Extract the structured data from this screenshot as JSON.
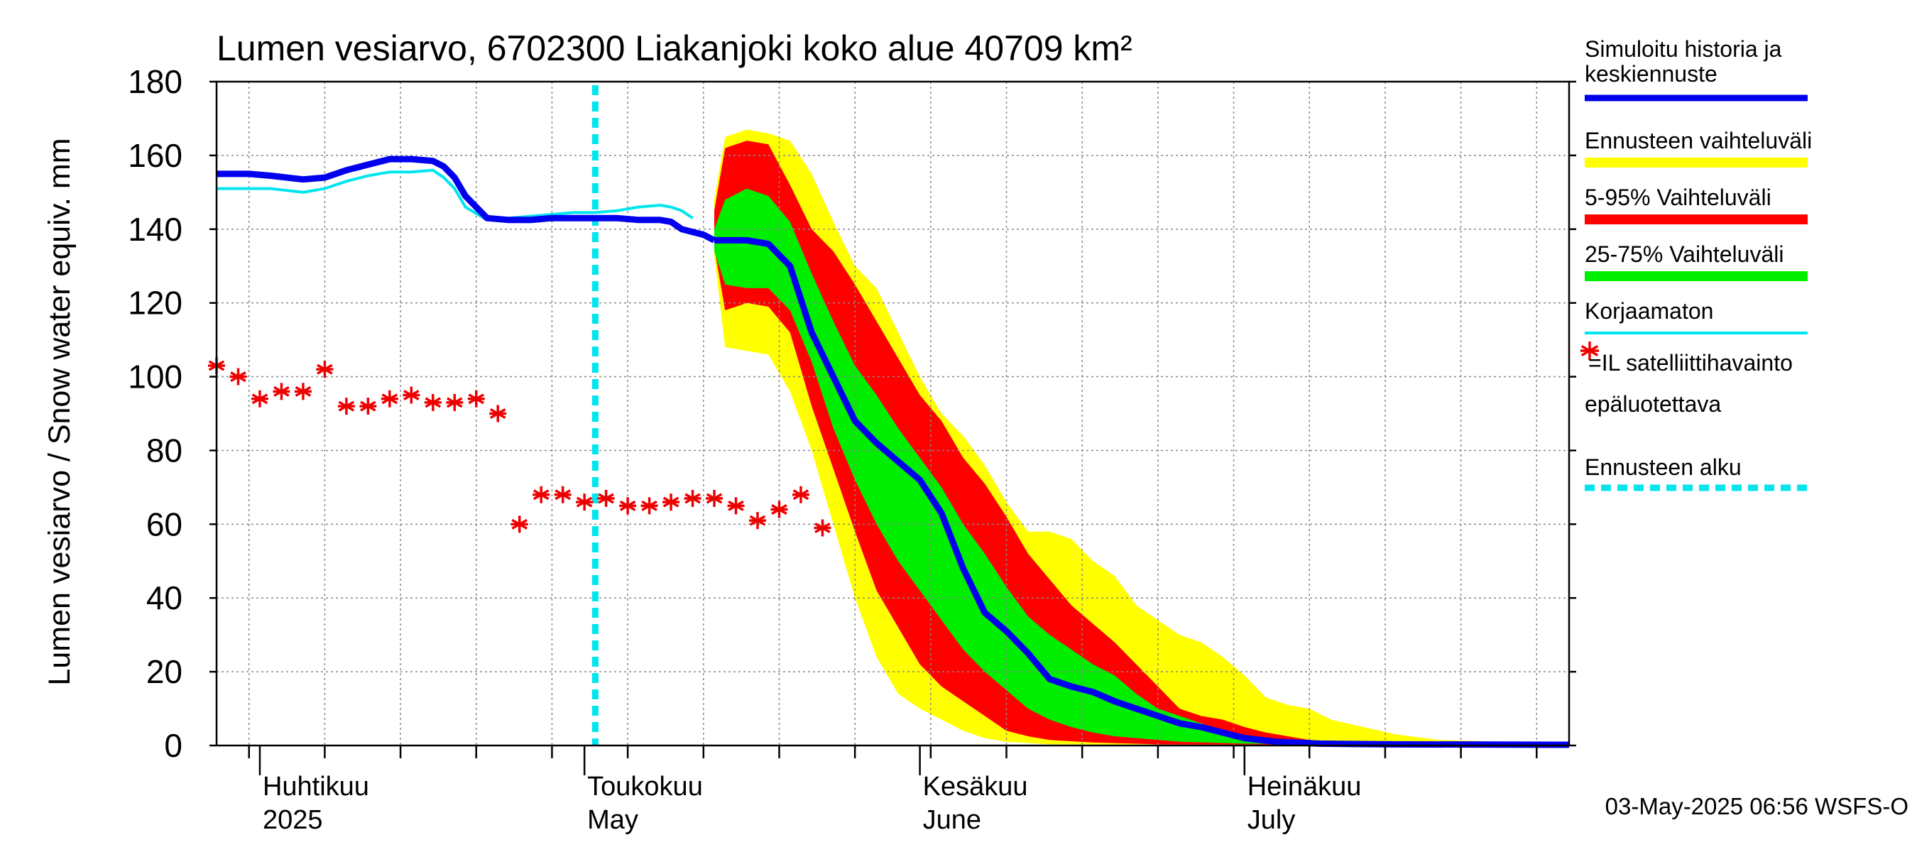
{
  "chart_data": {
    "type": "area",
    "title": "Lumen vesiarvo, 6702300 Liakanjoki koko alue 40709 km²",
    "ylabel": "Lumen vesiarvo / Snow water equiv.    mm",
    "ylim": [
      0,
      180
    ],
    "yticks": [
      "0",
      "20",
      "40",
      "60",
      "80",
      "100",
      "120",
      "140",
      "160",
      "180"
    ],
    "xlim": [
      "2025-03-28",
      "2025-07-31"
    ],
    "x_week_lines": [
      "2025-03-31",
      "2025-04-07",
      "2025-04-14",
      "2025-04-21",
      "2025-04-28",
      "2025-05-05",
      "2025-05-12",
      "2025-05-19",
      "2025-05-26",
      "2025-06-02",
      "2025-06-09",
      "2025-06-16",
      "2025-06-23",
      "2025-06-30",
      "2025-07-07",
      "2025-07-14",
      "2025-07-21",
      "2025-07-28"
    ],
    "x_month_ticks": [
      "2025-04-01",
      "2025-05-01",
      "2025-06-01",
      "2025-07-01"
    ],
    "month_labels": [
      {
        "x": "2025-04-01",
        "fi": "Huhtikuu",
        "en": "2025"
      },
      {
        "x": "2025-05-01",
        "fi": "Toukokuu",
        "en": "May"
      },
      {
        "x": "2025-06-01",
        "fi": "Kesäkuu",
        "en": "June"
      },
      {
        "x": "2025-07-01",
        "fi": "Heinäkuu",
        "en": "July"
      }
    ],
    "forecast_start": "2025-05-02",
    "grid": true,
    "legend_position": "right",
    "footer": "03-May-2025 06:56 WSFS-O",
    "colors": {
      "simulated": "#0000ee",
      "range_full": "#ffff00",
      "range_5_95": "#ff0000",
      "range_25_75": "#00ee00",
      "uncorrected": "#00e5ee",
      "satellite": "#ee0000",
      "forecast_start": "#00e5ee"
    },
    "legend": [
      {
        "key": "simulated",
        "label": "Simuloitu historia ja keskiennuste",
        "label_lines": [
          "Simuloitu historia ja",
          "keskiennuste"
        ],
        "style": "line"
      },
      {
        "key": "range_full",
        "label": "Ennusteen vaihteluväli",
        "style": "band"
      },
      {
        "key": "range_5_95",
        "label": "5-95% Vaihteluväli",
        "style": "band"
      },
      {
        "key": "range_25_75",
        "label": "25-75% Vaihteluväli",
        "style": "band"
      },
      {
        "key": "uncorrected",
        "label": "Korjaamaton",
        "style": "thin"
      },
      {
        "key": "satellite",
        "label": "=IL satelliittihavainto",
        "label2": "epäluotettava",
        "style": "star"
      },
      {
        "key": "forecast_start",
        "label": "Ennusteen alku",
        "style": "dashed"
      }
    ],
    "series": {
      "simulated_history": [
        [
          "2025-03-28",
          155
        ],
        [
          "2025-03-31",
          155
        ],
        [
          "2025-04-02",
          154.5
        ],
        [
          "2025-04-05",
          153.5
        ],
        [
          "2025-04-07",
          154
        ],
        [
          "2025-04-09",
          156
        ],
        [
          "2025-04-11",
          157.5
        ],
        [
          "2025-04-13",
          159
        ],
        [
          "2025-04-15",
          159
        ],
        [
          "2025-04-17",
          158.5
        ],
        [
          "2025-04-18",
          157
        ],
        [
          "2025-04-19",
          154
        ],
        [
          "2025-04-20",
          149
        ],
        [
          "2025-04-22",
          143
        ],
        [
          "2025-04-24",
          142.5
        ],
        [
          "2025-04-26",
          142.5
        ],
        [
          "2025-04-28",
          143
        ],
        [
          "2025-04-30",
          143
        ],
        [
          "2025-05-02",
          143
        ],
        [
          "2025-05-04",
          143
        ],
        [
          "2025-05-06",
          142.5
        ],
        [
          "2025-05-08",
          142.5
        ],
        [
          "2025-05-09",
          142
        ],
        [
          "2025-05-10",
          140
        ],
        [
          "2025-05-12",
          138.5
        ],
        [
          "2025-05-13",
          137
        ]
      ],
      "uncorrected": [
        [
          "2025-03-28",
          151
        ],
        [
          "2025-03-31",
          151
        ],
        [
          "2025-04-02",
          151
        ],
        [
          "2025-04-05",
          150
        ],
        [
          "2025-04-07",
          151
        ],
        [
          "2025-04-09",
          153
        ],
        [
          "2025-04-11",
          154.5
        ],
        [
          "2025-04-13",
          155.5
        ],
        [
          "2025-04-15",
          155.5
        ],
        [
          "2025-04-17",
          156
        ],
        [
          "2025-04-18",
          154
        ],
        [
          "2025-04-19",
          151
        ],
        [
          "2025-04-20",
          146
        ],
        [
          "2025-04-22",
          142.5
        ],
        [
          "2025-04-24",
          143
        ],
        [
          "2025-04-26",
          143.5
        ],
        [
          "2025-04-28",
          144
        ],
        [
          "2025-04-30",
          144.5
        ],
        [
          "2025-05-02",
          144.5
        ],
        [
          "2025-05-04",
          145
        ],
        [
          "2025-05-06",
          146
        ],
        [
          "2025-05-08",
          146.5
        ],
        [
          "2025-05-09",
          146
        ],
        [
          "2025-05-10",
          145
        ],
        [
          "2025-05-11",
          143
        ]
      ],
      "forecast_median": [
        [
          "2025-05-13",
          137
        ],
        [
          "2025-05-16",
          137
        ],
        [
          "2025-05-18",
          136
        ],
        [
          "2025-05-20",
          130
        ],
        [
          "2025-05-22",
          112
        ],
        [
          "2025-05-24",
          100
        ],
        [
          "2025-05-26",
          88
        ],
        [
          "2025-05-28",
          82
        ],
        [
          "2025-06-01",
          72
        ],
        [
          "2025-06-03",
          63
        ],
        [
          "2025-06-05",
          48
        ],
        [
          "2025-06-07",
          36
        ],
        [
          "2025-06-09",
          31
        ],
        [
          "2025-06-11",
          25
        ],
        [
          "2025-06-13",
          18
        ],
        [
          "2025-06-15",
          16
        ],
        [
          "2025-06-17",
          14.5
        ],
        [
          "2025-06-19",
          12
        ],
        [
          "2025-06-21",
          10
        ],
        [
          "2025-06-23",
          8
        ],
        [
          "2025-06-25",
          6
        ],
        [
          "2025-06-27",
          5
        ],
        [
          "2025-06-29",
          3.5
        ],
        [
          "2025-07-01",
          2
        ],
        [
          "2025-07-04",
          1
        ],
        [
          "2025-07-08",
          0.5
        ],
        [
          "2025-07-15",
          0.3
        ],
        [
          "2025-07-31",
          0.2
        ]
      ],
      "band_full": {
        "upper": [
          [
            "2025-05-13",
            148
          ],
          [
            "2025-05-14",
            165
          ],
          [
            "2025-05-16",
            167
          ],
          [
            "2025-05-18",
            166
          ],
          [
            "2025-05-20",
            164
          ],
          [
            "2025-05-22",
            155
          ],
          [
            "2025-05-24",
            142
          ],
          [
            "2025-05-26",
            130
          ],
          [
            "2025-05-28",
            124
          ],
          [
            "2025-05-30",
            112
          ],
          [
            "2025-06-01",
            100
          ],
          [
            "2025-06-03",
            90
          ],
          [
            "2025-06-05",
            84
          ],
          [
            "2025-06-07",
            76
          ],
          [
            "2025-06-09",
            66
          ],
          [
            "2025-06-11",
            58
          ],
          [
            "2025-06-13",
            58
          ],
          [
            "2025-06-15",
            56
          ],
          [
            "2025-06-17",
            50
          ],
          [
            "2025-06-19",
            46
          ],
          [
            "2025-06-21",
            38
          ],
          [
            "2025-06-23",
            34
          ],
          [
            "2025-06-25",
            30
          ],
          [
            "2025-06-27",
            28
          ],
          [
            "2025-06-29",
            24
          ],
          [
            "2025-07-01",
            19
          ],
          [
            "2025-07-03",
            13
          ],
          [
            "2025-07-05",
            11
          ],
          [
            "2025-07-07",
            10
          ],
          [
            "2025-07-09",
            7
          ],
          [
            "2025-07-12",
            5
          ],
          [
            "2025-07-15",
            3
          ],
          [
            "2025-07-19",
            1.5
          ],
          [
            "2025-07-31",
            0.5
          ]
        ],
        "lower": [
          [
            "2025-05-13",
            133
          ],
          [
            "2025-05-14",
            108
          ],
          [
            "2025-05-16",
            107
          ],
          [
            "2025-05-18",
            106
          ],
          [
            "2025-05-20",
            96
          ],
          [
            "2025-05-22",
            80
          ],
          [
            "2025-05-24",
            60
          ],
          [
            "2025-05-26",
            40
          ],
          [
            "2025-05-28",
            24
          ],
          [
            "2025-05-30",
            14
          ],
          [
            "2025-06-01",
            10
          ],
          [
            "2025-06-03",
            7
          ],
          [
            "2025-06-05",
            4
          ],
          [
            "2025-06-07",
            2
          ],
          [
            "2025-06-09",
            1
          ],
          [
            "2025-06-13",
            0.3
          ],
          [
            "2025-07-31",
            0
          ]
        ]
      },
      "band_5_95": {
        "upper": [
          [
            "2025-05-13",
            145
          ],
          [
            "2025-05-14",
            162
          ],
          [
            "2025-05-16",
            164
          ],
          [
            "2025-05-18",
            163
          ],
          [
            "2025-05-20",
            152
          ],
          [
            "2025-05-22",
            140
          ],
          [
            "2025-05-24",
            134
          ],
          [
            "2025-05-26",
            125
          ],
          [
            "2025-05-28",
            115
          ],
          [
            "2025-05-30",
            105
          ],
          [
            "2025-06-01",
            95
          ],
          [
            "2025-06-03",
            88
          ],
          [
            "2025-06-05",
            78
          ],
          [
            "2025-06-07",
            71
          ],
          [
            "2025-06-09",
            62
          ],
          [
            "2025-06-11",
            52
          ],
          [
            "2025-06-13",
            45
          ],
          [
            "2025-06-15",
            38
          ],
          [
            "2025-06-17",
            33
          ],
          [
            "2025-06-19",
            28
          ],
          [
            "2025-06-21",
            22
          ],
          [
            "2025-06-23",
            16
          ],
          [
            "2025-06-25",
            10
          ],
          [
            "2025-06-27",
            8
          ],
          [
            "2025-06-29",
            7
          ],
          [
            "2025-07-01",
            5
          ],
          [
            "2025-07-03",
            3.5
          ],
          [
            "2025-07-05",
            2.5
          ],
          [
            "2025-07-07",
            1.5
          ],
          [
            "2025-07-10",
            0.8
          ],
          [
            "2025-07-15",
            0.3
          ],
          [
            "2025-07-31",
            0.2
          ]
        ],
        "lower": [
          [
            "2025-05-13",
            135
          ],
          [
            "2025-05-14",
            118
          ],
          [
            "2025-05-16",
            120
          ],
          [
            "2025-05-18",
            119
          ],
          [
            "2025-05-20",
            112
          ],
          [
            "2025-05-22",
            92
          ],
          [
            "2025-05-24",
            75
          ],
          [
            "2025-05-26",
            58
          ],
          [
            "2025-05-28",
            42
          ],
          [
            "2025-05-30",
            32
          ],
          [
            "2025-06-01",
            22
          ],
          [
            "2025-06-03",
            16
          ],
          [
            "2025-06-05",
            12
          ],
          [
            "2025-06-07",
            8
          ],
          [
            "2025-06-09",
            4
          ],
          [
            "2025-06-11",
            2.5
          ],
          [
            "2025-06-13",
            1.5
          ],
          [
            "2025-06-17",
            0.8
          ],
          [
            "2025-06-23",
            0.3
          ],
          [
            "2025-07-31",
            0
          ]
        ]
      },
      "band_25_75": {
        "upper": [
          [
            "2025-05-13",
            140
          ],
          [
            "2025-05-14",
            148
          ],
          [
            "2025-05-16",
            151
          ],
          [
            "2025-05-18",
            149
          ],
          [
            "2025-05-20",
            142
          ],
          [
            "2025-05-22",
            128
          ],
          [
            "2025-05-24",
            115
          ],
          [
            "2025-05-26",
            103
          ],
          [
            "2025-05-28",
            95
          ],
          [
            "2025-05-30",
            86
          ],
          [
            "2025-06-01",
            78
          ],
          [
            "2025-06-03",
            70
          ],
          [
            "2025-06-05",
            60
          ],
          [
            "2025-06-07",
            52
          ],
          [
            "2025-06-09",
            43
          ],
          [
            "2025-06-11",
            35
          ],
          [
            "2025-06-13",
            30
          ],
          [
            "2025-06-15",
            26
          ],
          [
            "2025-06-17",
            22
          ],
          [
            "2025-06-19",
            19
          ],
          [
            "2025-06-21",
            14
          ],
          [
            "2025-06-23",
            10
          ],
          [
            "2025-06-25",
            8
          ],
          [
            "2025-06-27",
            6
          ],
          [
            "2025-06-29",
            4
          ],
          [
            "2025-07-01",
            2.5
          ],
          [
            "2025-07-04",
            1.5
          ],
          [
            "2025-07-08",
            0.8
          ],
          [
            "2025-07-31",
            0.3
          ]
        ],
        "lower": [
          [
            "2025-05-13",
            134
          ],
          [
            "2025-05-14",
            125
          ],
          [
            "2025-05-16",
            124
          ],
          [
            "2025-05-18",
            124
          ],
          [
            "2025-05-20",
            118
          ],
          [
            "2025-05-22",
            104
          ],
          [
            "2025-05-24",
            86
          ],
          [
            "2025-05-26",
            72
          ],
          [
            "2025-05-28",
            60
          ],
          [
            "2025-05-30",
            50
          ],
          [
            "2025-06-01",
            42
          ],
          [
            "2025-06-03",
            34
          ],
          [
            "2025-06-05",
            26
          ],
          [
            "2025-06-07",
            20
          ],
          [
            "2025-06-09",
            15
          ],
          [
            "2025-06-11",
            10
          ],
          [
            "2025-06-13",
            7
          ],
          [
            "2025-06-15",
            5
          ],
          [
            "2025-06-17",
            3.5
          ],
          [
            "2025-06-19",
            2.5
          ],
          [
            "2025-06-21",
            2
          ],
          [
            "2025-06-25",
            1
          ],
          [
            "2025-07-01",
            0.5
          ],
          [
            "2025-07-31",
            0.1
          ]
        ]
      },
      "satellite_obs": [
        [
          "2025-03-28",
          103
        ],
        [
          "2025-03-30",
          100
        ],
        [
          "2025-04-01",
          94
        ],
        [
          "2025-04-03",
          96
        ],
        [
          "2025-04-05",
          96
        ],
        [
          "2025-04-07",
          102
        ],
        [
          "2025-04-09",
          92
        ],
        [
          "2025-04-11",
          92
        ],
        [
          "2025-04-13",
          94
        ],
        [
          "2025-04-15",
          95
        ],
        [
          "2025-04-17",
          93
        ],
        [
          "2025-04-19",
          93
        ],
        [
          "2025-04-21",
          94
        ],
        [
          "2025-04-23",
          90
        ],
        [
          "2025-04-25",
          60
        ],
        [
          "2025-04-27",
          68
        ],
        [
          "2025-04-29",
          68
        ],
        [
          "2025-05-01",
          66
        ],
        [
          "2025-05-03",
          67
        ],
        [
          "2025-05-05",
          65
        ],
        [
          "2025-05-07",
          65
        ],
        [
          "2025-05-09",
          66
        ],
        [
          "2025-05-11",
          67
        ],
        [
          "2025-05-13",
          67
        ],
        [
          "2025-05-15",
          65
        ],
        [
          "2025-05-17",
          61
        ],
        [
          "2025-05-19",
          64
        ],
        [
          "2025-05-21",
          68
        ],
        [
          "2025-05-23",
          59
        ]
      ]
    }
  }
}
